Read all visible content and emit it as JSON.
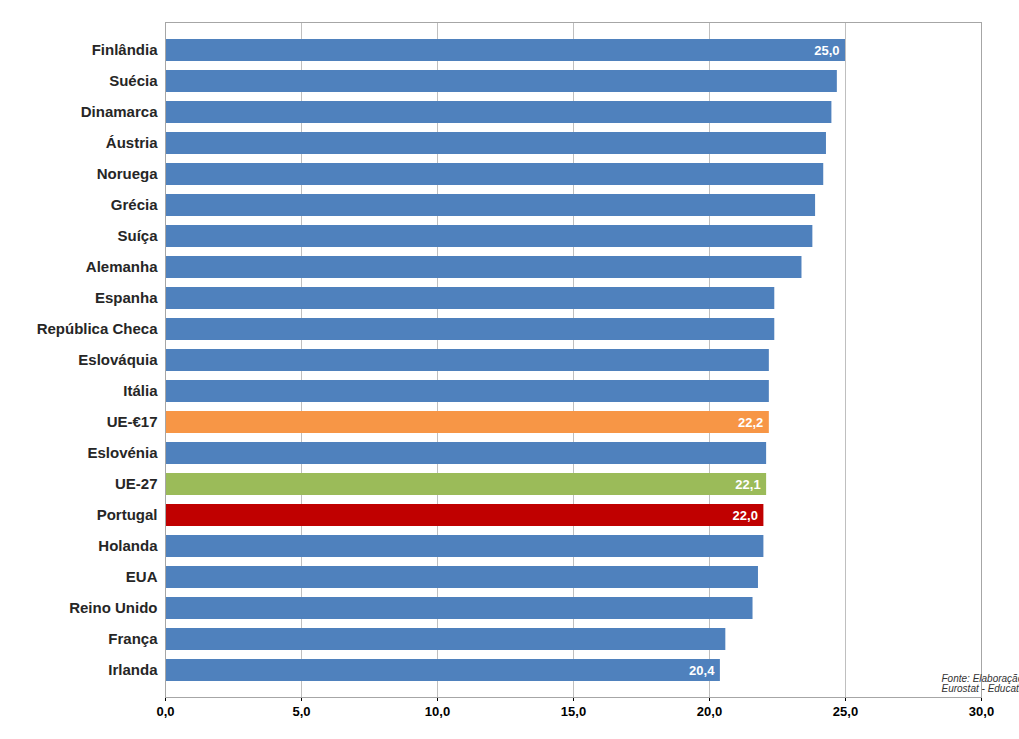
{
  "chart_data": {
    "type": "bar",
    "orientation": "horizontal",
    "categories": [
      "Finlândia",
      "Suécia",
      "Dinamarca",
      "Áustria",
      "Noruega",
      "Grécia",
      "Suíça",
      "Alemanha",
      "Espanha",
      "República Checa",
      "Eslováquia",
      "Itália",
      "UE-€17",
      "Eslovénia",
      "UE-27",
      "Portugal",
      "Holanda",
      "EUA",
      "Reino Unido",
      "França",
      "Irlanda"
    ],
    "values": [
      25.0,
      24.7,
      24.5,
      24.3,
      24.2,
      23.9,
      23.8,
      23.4,
      22.4,
      22.4,
      22.2,
      22.2,
      22.2,
      22.1,
      22.1,
      22.0,
      22.0,
      21.8,
      21.6,
      20.6,
      20.4
    ],
    "value_labels": [
      "25,0",
      null,
      null,
      null,
      null,
      null,
      null,
      null,
      null,
      null,
      null,
      null,
      "22,2",
      null,
      "22,1",
      "22,0",
      null,
      null,
      null,
      null,
      "20,4"
    ],
    "colors": [
      "#4f81bd",
      "#4f81bd",
      "#4f81bd",
      "#4f81bd",
      "#4f81bd",
      "#4f81bd",
      "#4f81bd",
      "#4f81bd",
      "#4f81bd",
      "#4f81bd",
      "#4f81bd",
      "#4f81bd",
      "#f79646",
      "#4f81bd",
      "#9bbb59",
      "#c00000",
      "#4f81bd",
      "#4f81bd",
      "#4f81bd",
      "#4f81bd",
      "#4f81bd"
    ],
    "data_labels": true,
    "xlim": [
      0,
      30
    ],
    "xticks": [
      {
        "value": 0,
        "label": "0,0"
      },
      {
        "value": 5,
        "label": "5,0"
      },
      {
        "value": 10,
        "label": "10,0"
      },
      {
        "value": 15,
        "label": "15,0"
      },
      {
        "value": 20,
        "label": "20,0"
      },
      {
        "value": 25,
        "label": "25,0"
      },
      {
        "value": 30,
        "label": "30,0"
      }
    ],
    "grid": true,
    "annotations": [
      "Fonte: Elaboração própria, c/ base em:",
      "Eurostat - Educational and Training Database"
    ]
  }
}
